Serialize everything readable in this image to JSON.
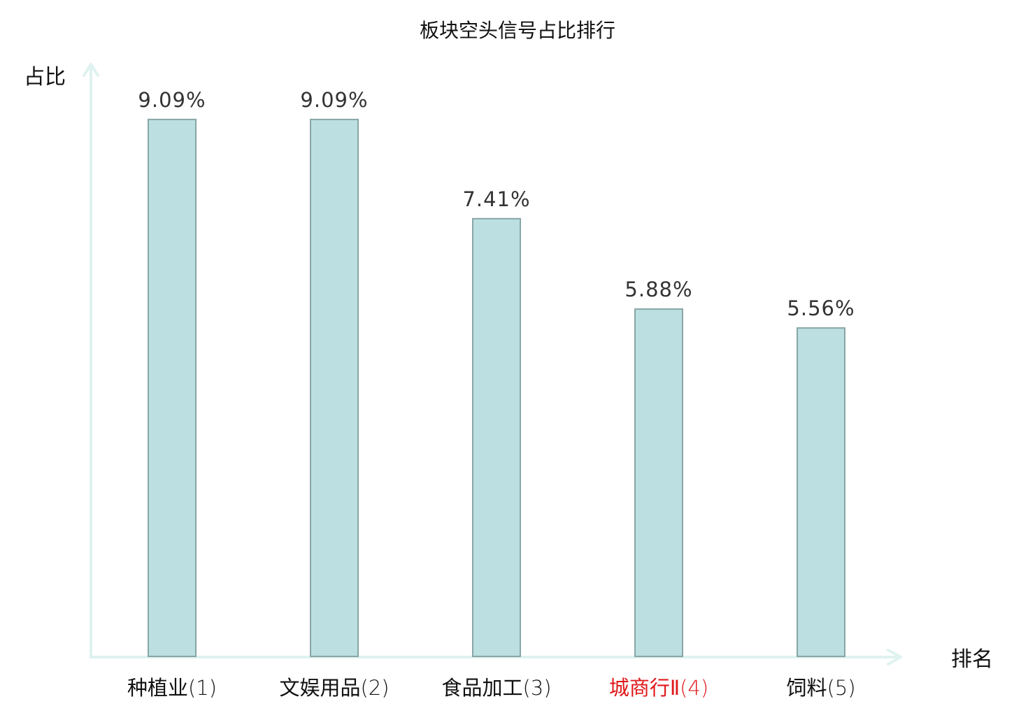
{
  "chart_data": {
    "type": "bar",
    "title": "板块空头信号占比排行",
    "xlabel": "排名",
    "ylabel": "占比",
    "categories": [
      {
        "name": "种植业",
        "rank": "(1)",
        "highlight": false
      },
      {
        "name": "文娱用品",
        "rank": "(2)",
        "highlight": false
      },
      {
        "name": "食品加工",
        "rank": "(3)",
        "highlight": false
      },
      {
        "name": "城商行Ⅱ",
        "rank": "(4)",
        "highlight": true
      },
      {
        "name": "饲料",
        "rank": "(5)",
        "highlight": false
      }
    ],
    "values": [
      9.09,
      9.09,
      7.41,
      5.88,
      5.56
    ],
    "value_labels": [
      "9.09%",
      "9.09%",
      "7.41%",
      "5.88%",
      "5.56%"
    ],
    "ylim": [
      0,
      10.0
    ],
    "grid": false,
    "colors": {
      "bar_fill": "#bce0e1",
      "bar_stroke": "#88a5a6",
      "axis": "#dff2ef",
      "label_normal": "#111111",
      "label_highlight": "#e0191c",
      "value_text": "#333333"
    }
  }
}
